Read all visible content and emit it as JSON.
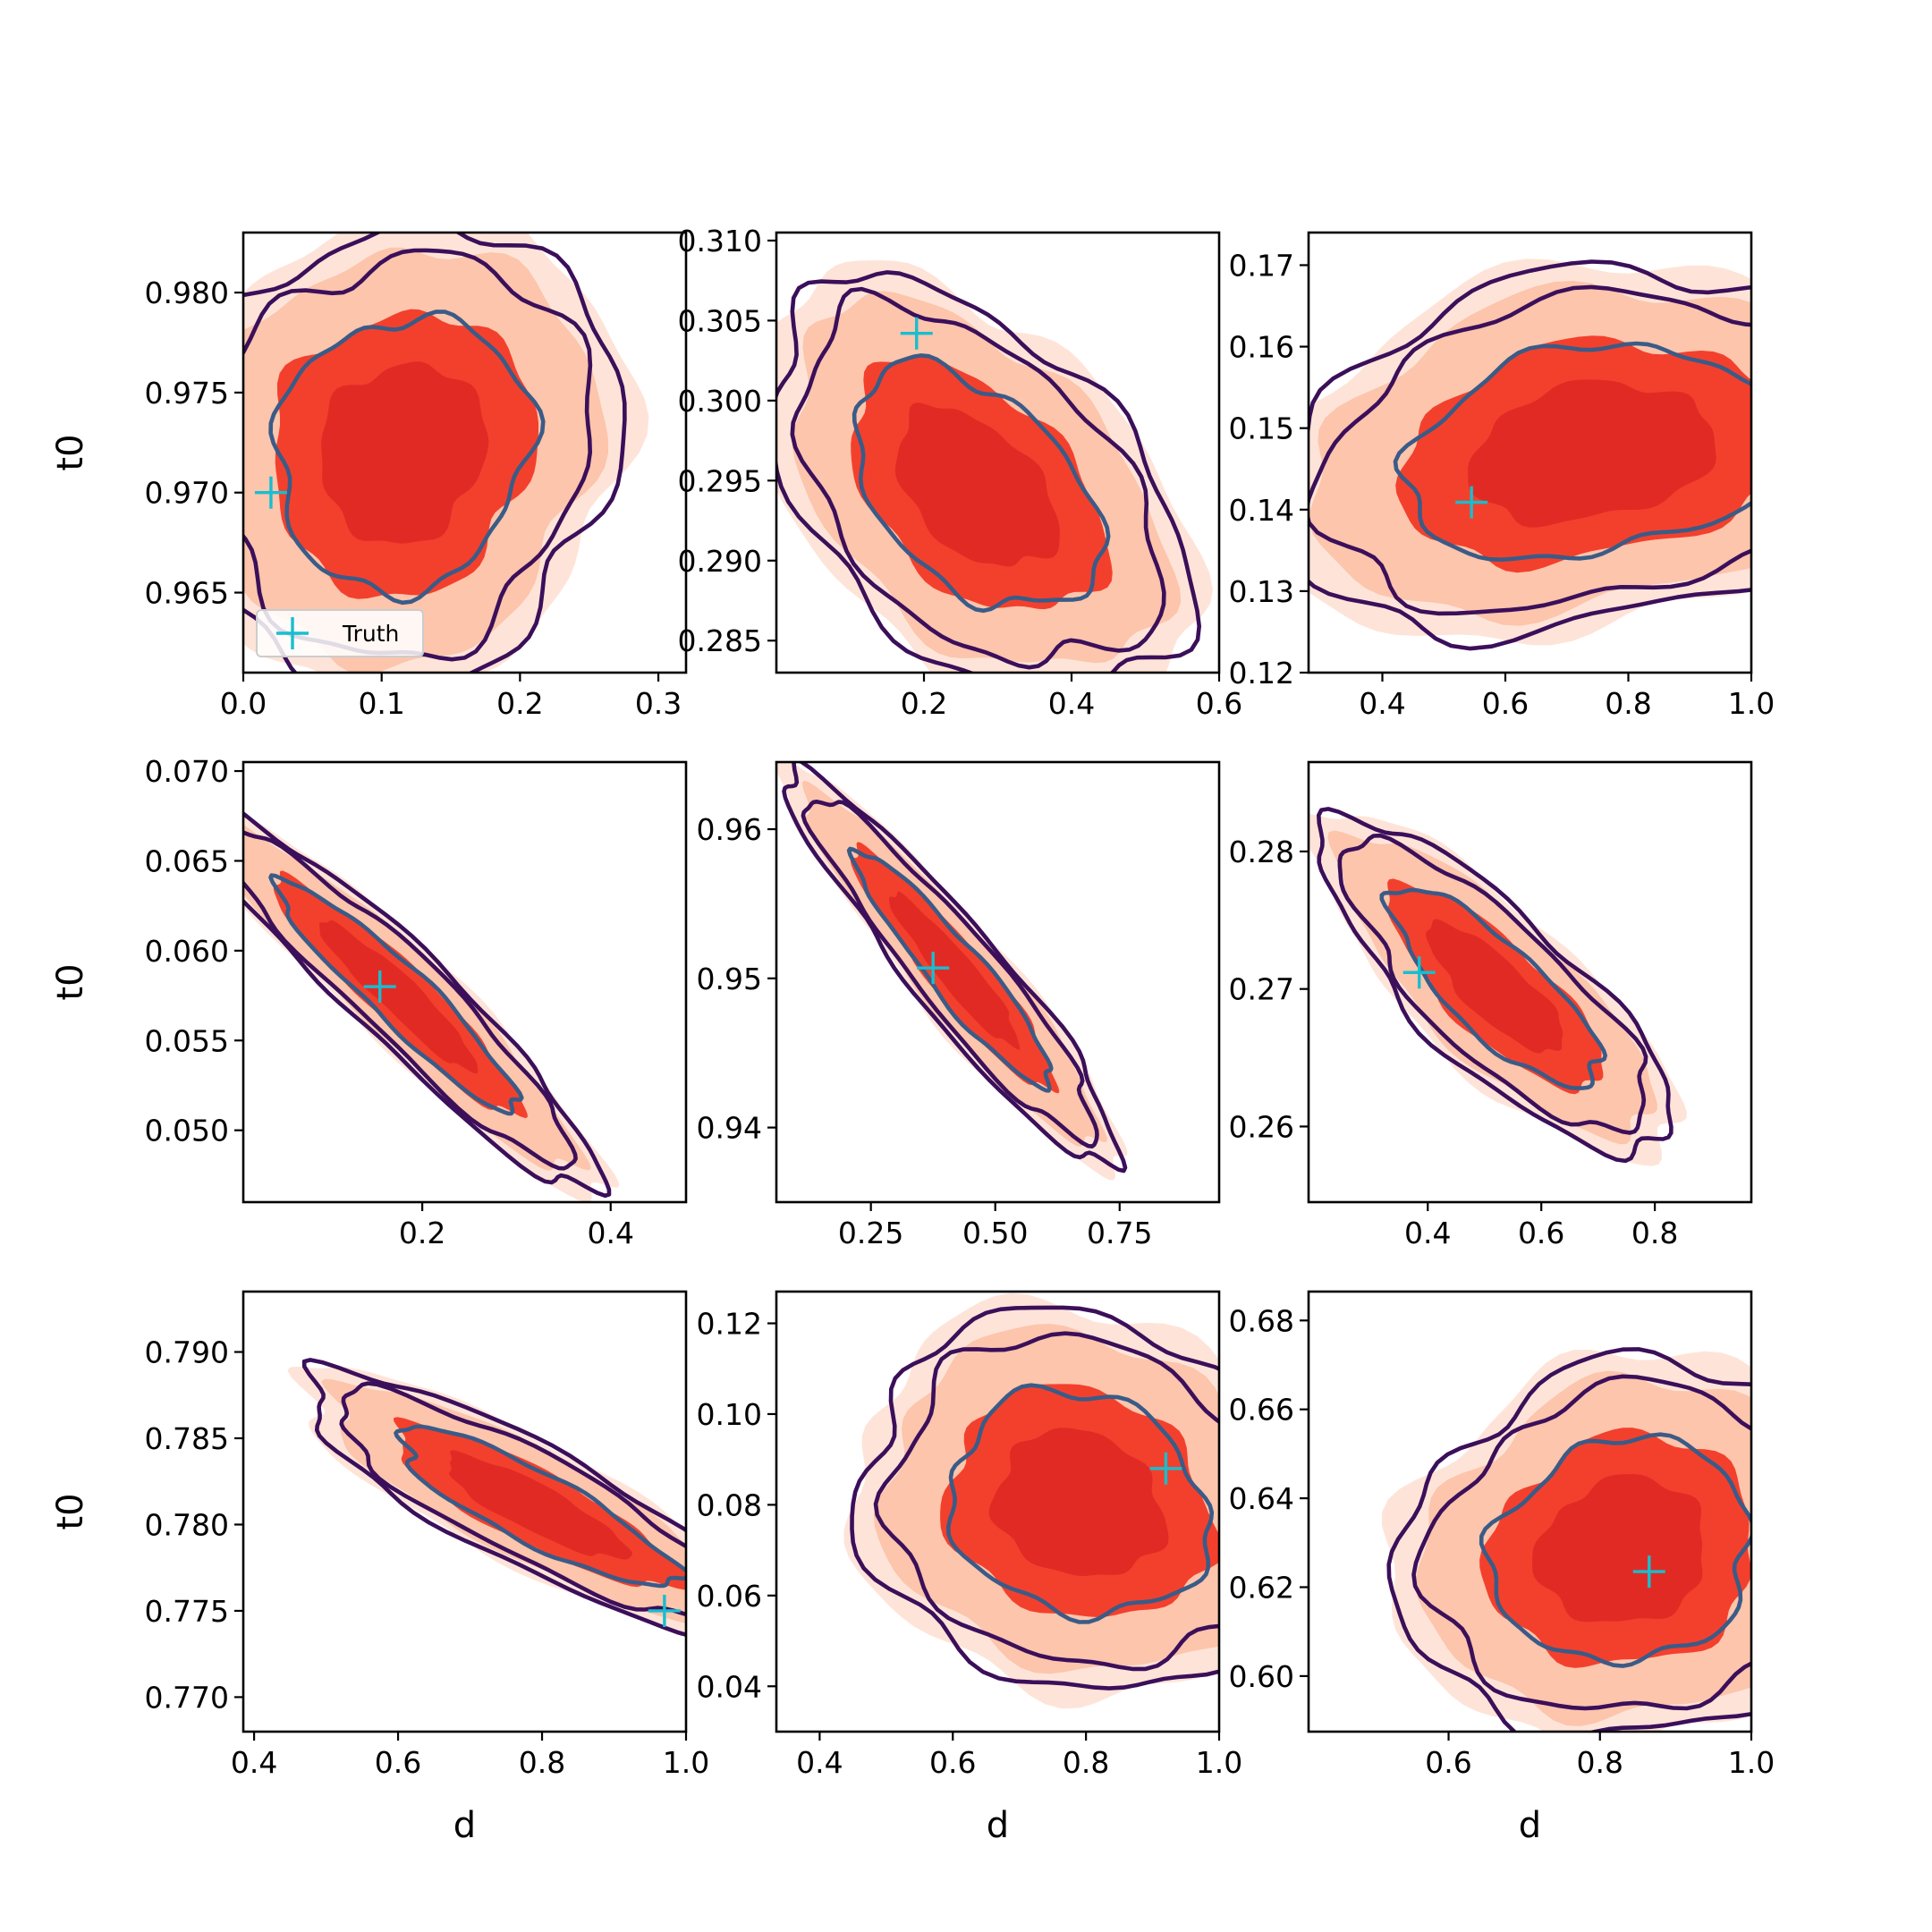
{
  "figure": {
    "legend_label": "Truth",
    "colors": {
      "fill_levels": [
        "#fee4d8",
        "#fcc5ac",
        "#f3402d",
        "#e22a25"
      ],
      "contour_outer": "#3b0f5a",
      "contour_inner": "#3b5b87",
      "truth_marker": "#17becf"
    }
  },
  "chart_data": [
    {
      "type": "contour",
      "xlabel": "",
      "ylabel": "t0",
      "xlim": [
        0.0,
        0.32
      ],
      "ylim": [
        0.961,
        0.983
      ],
      "xticks": [
        "0.0",
        "0.1",
        "0.2",
        "0.3"
      ],
      "xtick_values": [
        0.0,
        0.1,
        0.2,
        0.3
      ],
      "yticks": [
        "0.965",
        "0.970",
        "0.975",
        "0.980"
      ],
      "ytick_values": [
        0.965,
        0.97,
        0.975,
        0.98
      ],
      "center": [
        0.115,
        0.972
      ],
      "spread": [
        0.062,
        0.0048
      ],
      "corr": 0.0,
      "truth": [
        0.02,
        0.97
      ],
      "legend": "lower-left"
    },
    {
      "type": "contour",
      "xlabel": "",
      "ylabel": "",
      "xlim": [
        0.0,
        0.6
      ],
      "ylim": [
        0.283,
        0.3105
      ],
      "xticks": [
        "0.2",
        "0.4",
        "0.6"
      ],
      "xtick_values": [
        0.2,
        0.4,
        0.6
      ],
      "yticks": [
        "0.285",
        "0.290",
        "0.295",
        "0.300",
        "0.305",
        "0.310"
      ],
      "ytick_values": [
        0.285,
        0.29,
        0.295,
        0.3,
        0.305,
        0.31
      ],
      "center": [
        0.27,
        0.2945
      ],
      "spread": [
        0.11,
        0.0055
      ],
      "corr": -0.45,
      "truth": [
        0.19,
        0.3042
      ]
    },
    {
      "type": "contour",
      "xlabel": "",
      "ylabel": "",
      "xlim": [
        0.28,
        1.0
      ],
      "ylim": [
        0.12,
        0.174
      ],
      "xticks": [
        "0.4",
        "0.6",
        "0.8",
        "1.0"
      ],
      "xtick_values": [
        0.4,
        0.6,
        0.8,
        1.0
      ],
      "yticks": [
        "0.12",
        "0.13",
        "0.14",
        "0.15",
        "0.16",
        "0.17"
      ],
      "ytick_values": [
        0.12,
        0.13,
        0.14,
        0.15,
        0.16,
        0.17
      ],
      "center": [
        0.74,
        0.147
      ],
      "spread": [
        0.2,
        0.0095
      ],
      "corr": 0.2,
      "truth": [
        0.545,
        0.1409
      ]
    },
    {
      "type": "contour",
      "xlabel": "",
      "ylabel": "t0",
      "xlim": [
        0.01,
        0.48
      ],
      "ylim": [
        0.046,
        0.0705
      ],
      "xticks": [
        "0.2",
        "0.4"
      ],
      "xtick_values": [
        0.2,
        0.4
      ],
      "yticks": [
        "0.050",
        "0.055",
        "0.060",
        "0.065",
        "0.070"
      ],
      "ytick_values": [
        0.05,
        0.055,
        0.06,
        0.065,
        0.07
      ],
      "center": [
        0.175,
        0.0575
      ],
      "spread": [
        0.085,
        0.0042
      ],
      "corr": -0.93,
      "truth": [
        0.155,
        0.058
      ]
    },
    {
      "type": "contour",
      "xlabel": "",
      "ylabel": "",
      "xlim": [
        0.06,
        0.95
      ],
      "ylim": [
        0.935,
        0.9645
      ],
      "xticks": [
        "0.25",
        "0.50",
        "0.75"
      ],
      "xtick_values": [
        0.25,
        0.5,
        0.75
      ],
      "yticks": [
        "0.94",
        "0.95",
        "0.96"
      ],
      "ytick_values": [
        0.94,
        0.95,
        0.96
      ],
      "center": [
        0.42,
        0.9505
      ],
      "spread": [
        0.135,
        0.0052
      ],
      "corr": -0.93,
      "truth": [
        0.375,
        0.9507
      ]
    },
    {
      "type": "contour",
      "xlabel": "",
      "ylabel": "",
      "xlim": [
        0.19,
        0.97
      ],
      "ylim": [
        0.2545,
        0.2865
      ],
      "xticks": [
        "0.4",
        "0.6",
        "0.8"
      ],
      "xtick_values": [
        0.4,
        0.6,
        0.8
      ],
      "yticks": [
        "0.26",
        "0.27",
        "0.28"
      ],
      "ytick_values": [
        0.26,
        0.27,
        0.28
      ],
      "center": [
        0.52,
        0.27
      ],
      "spread": [
        0.13,
        0.0048
      ],
      "corr": -0.8,
      "truth": [
        0.385,
        0.2712
      ]
    },
    {
      "type": "contour",
      "xlabel": "d",
      "ylabel": "t0",
      "xlim": [
        0.385,
        1.0
      ],
      "ylim": [
        0.768,
        0.7935
      ],
      "xticks": [
        "0.4",
        "0.6",
        "0.8",
        "1.0"
      ],
      "xtick_values": [
        0.4,
        0.6,
        0.8,
        1.0
      ],
      "yticks": [
        "0.770",
        "0.775",
        "0.780",
        "0.785",
        "0.790"
      ],
      "ytick_values": [
        0.77,
        0.775,
        0.78,
        0.785,
        0.79
      ],
      "center": [
        0.79,
        0.781
      ],
      "spread": [
        0.14,
        0.0032
      ],
      "corr": -0.88,
      "truth": [
        0.97,
        0.775
      ]
    },
    {
      "type": "contour",
      "xlabel": "d",
      "ylabel": "",
      "xlim": [
        0.335,
        1.0
      ],
      "ylim": [
        0.03,
        0.127
      ],
      "xticks": [
        "0.4",
        "0.6",
        "0.8",
        "1.0"
      ],
      "xtick_values": [
        0.4,
        0.6,
        0.8,
        1.0
      ],
      "yticks": [
        "0.04",
        "0.06",
        "0.08",
        "0.10",
        "0.12"
      ],
      "ytick_values": [
        0.04,
        0.06,
        0.08,
        0.1,
        0.12
      ],
      "center": [
        0.79,
        0.08
      ],
      "spread": [
        0.14,
        0.0165
      ],
      "corr": -0.2,
      "truth": [
        0.92,
        0.088
      ]
    },
    {
      "type": "contour",
      "xlabel": "d",
      "ylabel": "",
      "xlim": [
        0.415,
        1.0
      ],
      "ylim": [
        0.5875,
        0.6865
      ],
      "xticks": [
        "0.6",
        "0.8",
        "1.0"
      ],
      "xtick_values": [
        0.6,
        0.8,
        1.0
      ],
      "yticks": [
        "0.60",
        "0.62",
        "0.64",
        "0.66",
        "0.68"
      ],
      "ytick_values": [
        0.6,
        0.62,
        0.64,
        0.66,
        0.68
      ],
      "center": [
        0.83,
        0.628
      ],
      "spread": [
        0.12,
        0.017
      ],
      "corr": 0.0,
      "truth": [
        0.865,
        0.6235
      ]
    }
  ]
}
